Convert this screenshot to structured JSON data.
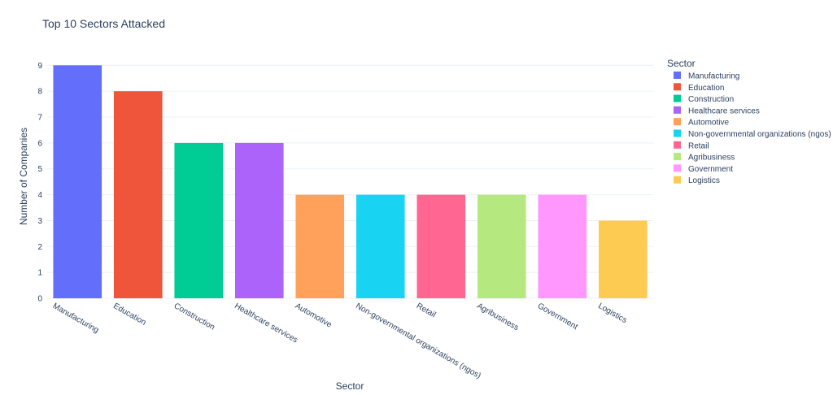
{
  "chart_data": {
    "type": "bar",
    "title": "Top 10 Sectors Attacked",
    "xlabel": "Sector",
    "ylabel": "Number of Companies",
    "ylim": [
      0,
      9.45
    ],
    "yticks": [
      0,
      1,
      2,
      3,
      4,
      5,
      6,
      7,
      8,
      9
    ],
    "grid": true,
    "legend": {
      "title": "Sector",
      "position": "right"
    },
    "categories": [
      "Manufacturing",
      "Education",
      "Construction",
      "Healthcare services",
      "Automotive",
      "Non-governmental organizations (ngos)",
      "Retail",
      "Agribusiness",
      "Government",
      "Logistics"
    ],
    "values": [
      9,
      8,
      6,
      6,
      4,
      4,
      4,
      4,
      4,
      3
    ],
    "colors": [
      "#636efa",
      "#ef553b",
      "#00cc96",
      "#ab63fa",
      "#ffa15a",
      "#19d3f3",
      "#ff6692",
      "#b6e880",
      "#ff97ff",
      "#fecb52"
    ]
  }
}
